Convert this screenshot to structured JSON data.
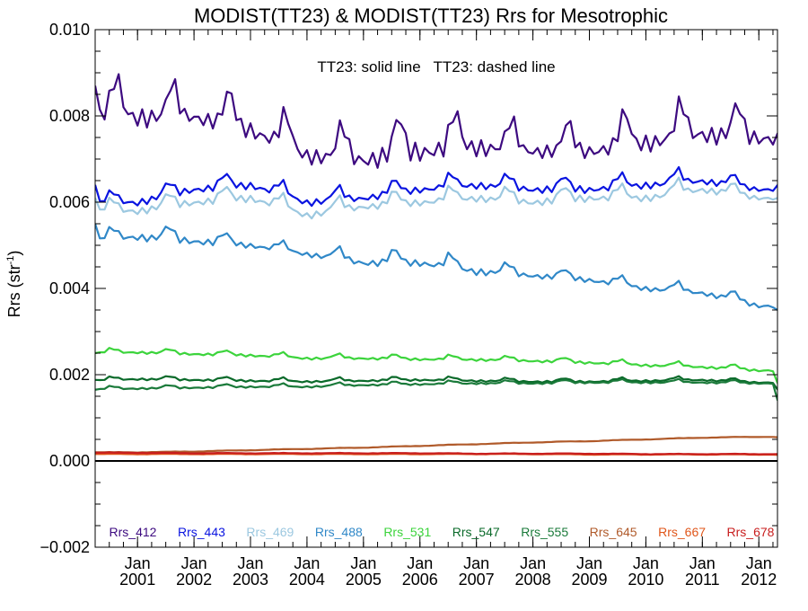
{
  "chart_data": {
    "type": "line",
    "title": "MODIST(TT23) & MODIST(TT23)  Rrs for Mesotrophic",
    "annotation": "TT23: solid line   TT23: dashed line",
    "ylabel_main": "Rrs (str",
    "ylabel_sup": "-1",
    "ylabel_tail": ")",
    "xlim": [
      2000.25,
      2012.33
    ],
    "ylim": [
      -0.002,
      0.01
    ],
    "yticks": [
      -0.002,
      0.0,
      0.002,
      0.004,
      0.006,
      0.008,
      0.01
    ],
    "ytick_labels": [
      "−0.002",
      "0.000",
      "0.002",
      "0.004",
      "0.006",
      "0.008",
      "0.010"
    ],
    "xticks": [
      2001,
      2002,
      2003,
      2004,
      2005,
      2006,
      2007,
      2008,
      2009,
      2010,
      2011,
      2012
    ],
    "xtick_labels_top": [
      "Jan",
      "Jan",
      "Jan",
      "Jan",
      "Jan",
      "Jan",
      "Jan",
      "Jan",
      "Jan",
      "Jan",
      "Jan",
      "Jan"
    ],
    "xtick_labels_bottom": [
      "2001",
      "2002",
      "2003",
      "2004",
      "2005",
      "2006",
      "2007",
      "2008",
      "2009",
      "2010",
      "2011",
      "2012"
    ],
    "zero_line": 0.0,
    "series": [
      {
        "name": "Rrs_412",
        "color": "#3d0a80",
        "pattern": "seasonal",
        "base": [
          0.0081,
          0.008,
          0.008,
          0.0077,
          0.0071,
          0.007,
          0.0072,
          0.0073,
          0.0072,
          0.0072,
          0.0074,
          0.0076,
          0.0075
        ],
        "amp": [
          0.0008,
          0.0009,
          0.0007,
          0.0008,
          0.0007,
          0.0008,
          0.0009,
          0.0008,
          0.0006,
          0.0007,
          0.0008,
          0.0008,
          0.0007
        ],
        "phase": 0.62,
        "start": 0.0087,
        "end": 0.0076
      },
      {
        "name": "Rrs_443",
        "color": "#0a14e0",
        "pattern": "seasonal",
        "base": [
          0.006,
          0.006,
          0.0063,
          0.0064,
          0.006,
          0.0061,
          0.0063,
          0.0064,
          0.0063,
          0.0063,
          0.0064,
          0.0065,
          0.0063
        ],
        "amp": [
          0.0002,
          0.0003,
          0.0003,
          0.0003,
          0.0003,
          0.0003,
          0.0003,
          0.0003,
          0.0003,
          0.0003,
          0.0003,
          0.0003,
          0.0002
        ],
        "phase": 0.55,
        "start": 0.0064,
        "end": 0.0064
      },
      {
        "name": "Rrs_469",
        "color": "#9cc8e0",
        "pattern": "seasonal",
        "base": [
          0.0058,
          0.0058,
          0.006,
          0.0061,
          0.0057,
          0.0059,
          0.006,
          0.0061,
          0.006,
          0.0061,
          0.0061,
          0.0063,
          0.0061
        ],
        "amp": [
          0.00025,
          0.0003,
          0.0003,
          0.0003,
          0.0003,
          0.0003,
          0.0003,
          0.0003,
          0.0003,
          0.0003,
          0.0003,
          0.0003,
          0.0002
        ],
        "phase": 0.55,
        "start": 0.0061,
        "end": 0.0061
      },
      {
        "name": "Rrs_488",
        "color": "#3088c8",
        "pattern": "seasonal",
        "base": [
          0.0051,
          0.0052,
          0.0051,
          0.005,
          0.0048,
          0.0046,
          0.0046,
          0.0044,
          0.0043,
          0.0042,
          0.004,
          0.0039,
          0.0036
        ],
        "amp": [
          0.0002,
          0.0003,
          0.0003,
          0.0002,
          0.0002,
          0.0003,
          0.0003,
          0.0003,
          0.0002,
          0.0002,
          0.0002,
          0.0002,
          0.0002
        ],
        "phase": 0.55,
        "start": 0.0055,
        "end": 0.0035
      },
      {
        "name": "Rrs_531",
        "color": "#3cd43c",
        "pattern": "seasonal",
        "base": [
          0.0025,
          0.00252,
          0.00248,
          0.00245,
          0.00238,
          0.00238,
          0.00236,
          0.00235,
          0.00232,
          0.00228,
          0.00222,
          0.00218,
          0.0021
        ],
        "amp": [
          0.0001,
          0.0001,
          0.0001,
          0.0001,
          0.0001,
          0.0001,
          0.0001,
          0.0001,
          0.0001,
          0.0001,
          0.0001,
          0.0001,
          0.0001
        ],
        "phase": 0.55,
        "start": 0.0025,
        "end": 0.0018
      },
      {
        "name": "Rrs_547",
        "color": "#0a6a2a",
        "pattern": "seasonal",
        "base": [
          0.00185,
          0.0019,
          0.00188,
          0.00186,
          0.00184,
          0.00186,
          0.00188,
          0.00186,
          0.00184,
          0.00184,
          0.00186,
          0.00188,
          0.00182
        ],
        "amp": [
          7e-05,
          8e-05,
          8e-05,
          8e-05,
          8e-05,
          8e-05,
          8e-05,
          8e-05,
          8e-05,
          8e-05,
          8e-05,
          8e-05,
          6e-05
        ],
        "phase": 0.55,
        "start": 0.00188,
        "end": 0.00165
      },
      {
        "name": "Rrs_555",
        "color": "#1a7a3a",
        "pattern": "seasonal",
        "base": [
          0.00165,
          0.00168,
          0.0017,
          0.00172,
          0.00172,
          0.00176,
          0.00178,
          0.0018,
          0.0018,
          0.00182,
          0.00182,
          0.00182,
          0.0018
        ],
        "amp": [
          7e-05,
          7e-05,
          7e-05,
          7e-05,
          7e-05,
          7e-05,
          7e-05,
          7e-05,
          7e-05,
          7e-05,
          7e-05,
          7e-05,
          6e-05
        ],
        "phase": 0.55,
        "start": 0.00165,
        "end": 0.0014
      },
      {
        "name": "Rrs_645",
        "color": "#b05a2a",
        "pattern": "trend",
        "base": [
          0.0002,
          0.0002,
          0.00022,
          0.00025,
          0.00028,
          0.00031,
          0.00035,
          0.00039,
          0.00043,
          0.00046,
          0.0005,
          0.00054,
          0.00056
        ],
        "amp": [
          1e-05,
          1e-05,
          1e-05,
          1e-05,
          1e-05,
          1e-05,
          1e-05,
          1e-05,
          1e-05,
          1e-05,
          1e-05,
          1e-05,
          1e-05
        ],
        "phase": 0.55,
        "start": 0.0002,
        "end": 0.00055
      },
      {
        "name": "Rrs_667",
        "color": "#e0561a",
        "pattern": "flat",
        "base": [
          0.00016,
          0.00016,
          0.00016,
          0.00016,
          0.00016,
          0.00016,
          0.00016,
          0.00016,
          0.00016,
          0.00015,
          0.00015,
          0.00015,
          0.00015
        ],
        "amp": [
          1e-05,
          1e-05,
          1e-05,
          1e-05,
          1e-05,
          1e-05,
          1e-05,
          1e-05,
          1e-05,
          1e-05,
          1e-05,
          1e-05,
          1e-05
        ],
        "phase": 0.55,
        "start": 0.00016,
        "end": 0.00014
      },
      {
        "name": "Rrs_678",
        "color": "#c81e1e",
        "pattern": "flat",
        "base": [
          0.00019,
          0.00019,
          0.00018,
          0.00018,
          0.00018,
          0.00018,
          0.00018,
          0.00017,
          0.00017,
          0.00017,
          0.00016,
          0.00016,
          0.00016
        ],
        "amp": [
          1e-05,
          1e-05,
          1e-05,
          1e-05,
          1e-05,
          1e-05,
          1e-05,
          1e-05,
          1e-05,
          1e-05,
          1e-05,
          1e-05,
          1e-05
        ],
        "phase": 0.55,
        "start": 0.00019,
        "end": 0.00016
      }
    ],
    "legend_placement": "bottom-inside",
    "grid": false
  }
}
